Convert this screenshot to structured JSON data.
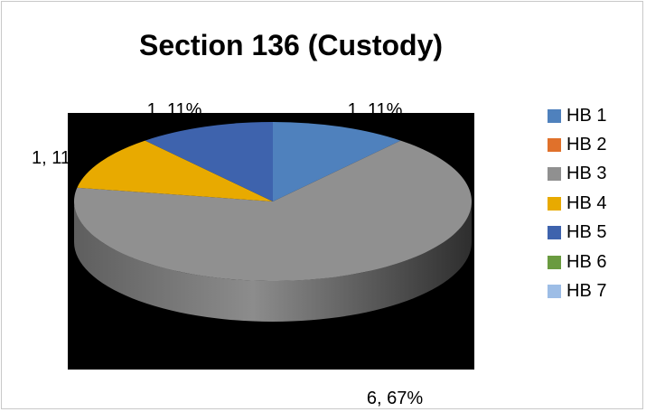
{
  "chart_data": {
    "type": "pie",
    "style": "3d-pie",
    "title": "Section 136 (Custody)",
    "categories": [
      "HB 1",
      "HB 2",
      "HB 3",
      "HB 4",
      "HB 5",
      "HB 6",
      "HB 7"
    ],
    "values": [
      1,
      0,
      6,
      1,
      1,
      0,
      0
    ],
    "data_labels": [
      "1, 11%",
      "",
      "6, 67%",
      "1, 11%",
      "1, 11%",
      "",
      ""
    ],
    "colors": [
      "#4f81bd",
      "#e0712b",
      "#909090",
      "#e8aa00",
      "#3e63ad",
      "#6a9b40",
      "#9dbde6"
    ],
    "legend_position": "right",
    "plot_background": "#000000"
  }
}
